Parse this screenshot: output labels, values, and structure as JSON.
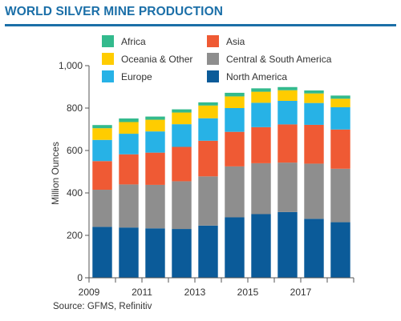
{
  "title": "WORLD SILVER MINE PRODUCTION",
  "source": "Source: GFMS, Refinitiv",
  "chart_data": {
    "type": "bar",
    "stacked": true,
    "x": [
      2009,
      2010,
      2011,
      2012,
      2013,
      2014,
      2015,
      2016,
      2017,
      2018
    ],
    "x_tick_labels": [
      "2009",
      "2011",
      "2013",
      "2015",
      "2017"
    ],
    "ylabel": "Million Ounces",
    "xlabel": "",
    "ylim": [
      0,
      1000
    ],
    "y_ticks": [
      0,
      200,
      400,
      600,
      800,
      1000
    ],
    "y_tick_labels": [
      "0",
      "200",
      "400",
      "600",
      "800",
      "1,000"
    ],
    "grid": false,
    "legend_position": "top",
    "series": [
      {
        "name": "North America",
        "color": "#0b5b99",
        "values": [
          240,
          237,
          233,
          230,
          246,
          285,
          300,
          310,
          278,
          262
        ]
      },
      {
        "name": "Central & South America",
        "color": "#8e8e8e",
        "values": [
          175,
          203,
          205,
          225,
          232,
          240,
          240,
          233,
          260,
          252
        ]
      },
      {
        "name": "Asia",
        "color": "#ef5a34",
        "values": [
          135,
          142,
          152,
          162,
          168,
          163,
          170,
          180,
          183,
          185
        ]
      },
      {
        "name": "Europe",
        "color": "#27b2e6",
        "values": [
          100,
          97,
          100,
          107,
          106,
          112,
          115,
          111,
          103,
          105
        ]
      },
      {
        "name": "Oceania & Other",
        "color": "#ffcc00",
        "values": [
          55,
          55,
          55,
          55,
          60,
          55,
          52,
          50,
          45,
          40
        ]
      },
      {
        "name": "Africa",
        "color": "#33ba8d",
        "values": [
          15,
          17,
          15,
          15,
          15,
          17,
          16,
          15,
          14,
          15
        ]
      }
    ],
    "legend_order": [
      "Africa",
      "Asia",
      "Oceania & Other",
      "Central & South America",
      "Europe",
      "North America"
    ]
  }
}
